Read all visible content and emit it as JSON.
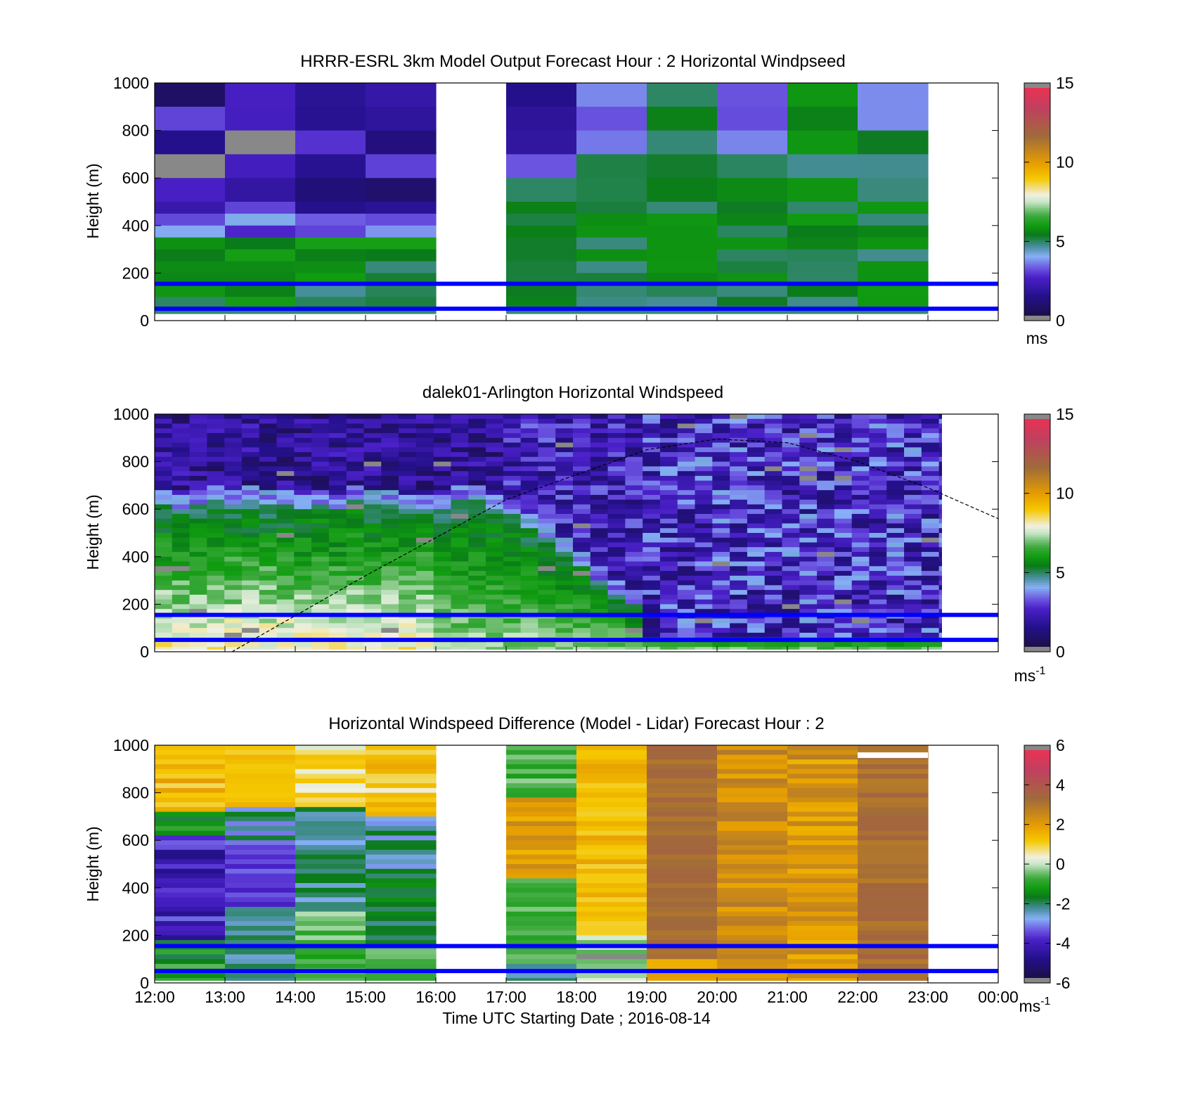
{
  "colors": {
    "colormap": [
      [
        "#1b0f3a",
        0.0
      ],
      [
        "#24108a",
        0.1
      ],
      [
        "#4a20c8",
        0.18
      ],
      [
        "#6b55e0",
        0.22
      ],
      [
        "#86b0f5",
        0.27
      ],
      [
        "#4a8fa0",
        0.31
      ],
      [
        "#0a7a1a",
        0.36
      ],
      [
        "#109c10",
        0.4
      ],
      [
        "#3aa83a",
        0.44
      ],
      [
        "#7cc47c",
        0.47
      ],
      [
        "#c8e6c8",
        0.5
      ],
      [
        "#f0f0e0",
        0.53
      ],
      [
        "#f5c800",
        0.6
      ],
      [
        "#e8a000",
        0.66
      ],
      [
        "#a06a3a",
        0.78
      ],
      [
        "#c04060",
        0.9
      ],
      [
        "#f03050",
        1.0
      ]
    ],
    "sentinel": "#888888",
    "marker_line": "#0000ff"
  },
  "chart_data": [
    {
      "type": "heatmap",
      "title": "HRRR-ESRL 3km Model Output   Forecast Hour : 2 Horizontal Windpseed",
      "ylabel": "Height (m)",
      "ylim": [
        0,
        1000
      ],
      "yticks": [
        "0",
        "200",
        "400",
        "600",
        "800",
        "1000"
      ],
      "xlim": [
        12,
        24
      ],
      "colorbar": {
        "ticks": [
          "0",
          "5",
          "10",
          "15"
        ],
        "range": [
          0,
          15
        ],
        "unit": "ms"
      },
      "marker_lines_m": [
        50,
        155
      ],
      "missing_hours": [
        [
          16,
          17
        ],
        [
          23,
          24
        ]
      ],
      "grid": false
    },
    {
      "type": "heatmap",
      "title": "dalek01-Arlington  Horizontal Windspeed",
      "ylabel": "Height (m)",
      "ylim": [
        0,
        1000
      ],
      "yticks": [
        "0",
        "200",
        "400",
        "600",
        "800",
        "1000"
      ],
      "xlim": [
        12,
        24
      ],
      "colorbar": {
        "ticks": [
          "0",
          "5",
          "10",
          "15"
        ],
        "range": [
          0,
          15
        ],
        "unit": "ms",
        "unit_sup": "-1"
      },
      "marker_lines_m": [
        50,
        155
      ],
      "boundary_layer_curve": [
        [
          13.1,
          0
        ],
        [
          15,
          320
        ],
        [
          17,
          640
        ],
        [
          19,
          850
        ],
        [
          20,
          895
        ],
        [
          21,
          880
        ],
        [
          22,
          800
        ],
        [
          23,
          690
        ],
        [
          24,
          560
        ]
      ],
      "grid": false
    },
    {
      "type": "heatmap",
      "title": "Horizontal Windspeed Difference (Model - Lidar) Forecast Hour : 2",
      "ylabel": "Height (m)",
      "xlabel": "Time UTC  Starting Date ; 2016-08-14",
      "ylim": [
        0,
        1000
      ],
      "yticks": [
        "0",
        "200",
        "400",
        "600",
        "800",
        "1000"
      ],
      "xlim": [
        12,
        24
      ],
      "xticks": [
        "12:00",
        "13:00",
        "14:00",
        "15:00",
        "16:00",
        "17:00",
        "18:00",
        "19:00",
        "20:00",
        "21:00",
        "22:00",
        "23:00",
        "00:00"
      ],
      "colorbar": {
        "ticks": [
          "-6",
          "-4",
          "-2",
          "0",
          "2",
          "4",
          "6"
        ],
        "range": [
          -6,
          6
        ],
        "unit": "ms",
        "unit_sup": "-1"
      },
      "marker_lines_m": [
        50,
        155
      ],
      "missing_hours": [
        [
          16,
          17
        ],
        [
          23,
          24
        ]
      ],
      "grid": false
    }
  ]
}
